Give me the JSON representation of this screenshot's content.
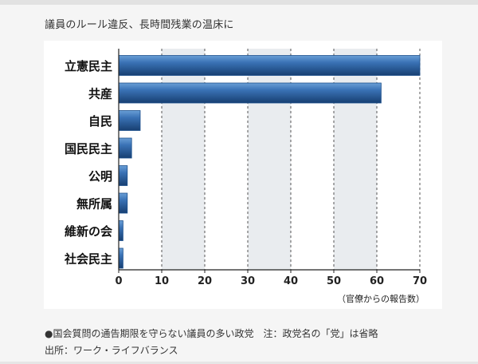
{
  "heading": "議員のルール違反、長時間残業の温床に",
  "chart_data": {
    "type": "bar",
    "orientation": "horizontal",
    "categories": [
      "立憲民主",
      "共産",
      "自民",
      "国民民主",
      "公明",
      "無所属",
      "維新の会",
      "社会民主"
    ],
    "values": [
      70,
      61,
      5,
      3,
      2,
      2,
      1,
      1
    ],
    "xlim": [
      0,
      70
    ],
    "xticks": [
      "0",
      "10",
      "20",
      "30",
      "40",
      "50",
      "60",
      "70"
    ],
    "xlabel": "（官僚からの報告数）",
    "grid": "vertical dashed lines, alternating shaded bands",
    "colors": {
      "bar_dark": "#1c4f8c",
      "bar_light": "#4f8ac8",
      "band": "#e9ecef",
      "axis": "#222222"
    }
  },
  "captions": {
    "line1": "●国会質問の通告期限を守らない議員の多い政党　注：政党名の「党」は省略",
    "line2": "出所：ワーク・ライフバランス"
  }
}
